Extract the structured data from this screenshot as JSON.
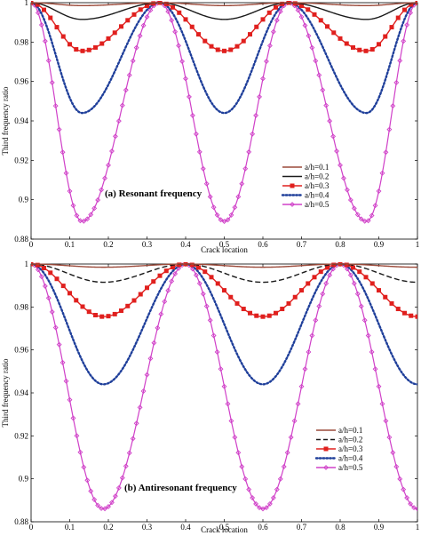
{
  "chart_data": [
    {
      "type": "line",
      "annotation": "(a) Resonant frequency",
      "xlabel": "Crack location",
      "ylabel": "Third frequency ratio",
      "xlim": [
        0,
        1
      ],
      "ylim": [
        0.88,
        1.0
      ],
      "xticks": [
        0,
        0.1,
        0.2,
        0.3,
        0.4,
        0.5,
        0.6,
        0.7,
        0.8,
        0.9,
        1
      ],
      "xtick_labels": [
        "0",
        "0.1",
        "0.2",
        "0.3",
        "0.4",
        "0.5",
        "0.6",
        "0.7",
        "0.8",
        "0.9",
        "1"
      ],
      "yticks": [
        0.88,
        0.9,
        0.92,
        0.94,
        0.96,
        0.98,
        1.0
      ],
      "ytick_labels": [
        "0.88",
        "0.9",
        "0.92",
        "0.94",
        "0.96",
        "0.98",
        "1"
      ],
      "legend_position": "lower-right",
      "curve_model": {
        "peaks_at": [
          0,
          0.333,
          0.667,
          1.0
        ],
        "minima_at": [
          0.132,
          0.5,
          0.868
        ],
        "shape": "sin^2"
      },
      "series": [
        {
          "name": "a/h=0.1",
          "color": "#9c4a3a",
          "style": "solid",
          "min": 0.9985
        },
        {
          "name": "a/h=0.2",
          "color": "#1a1a1a",
          "style": "solid",
          "min": 0.9915
        },
        {
          "name": "a/h=0.3",
          "color": "#e0201e",
          "style": "solid-square",
          "min": 0.9755
        },
        {
          "name": "a/h=0.4",
          "color": "#1f3f9a",
          "style": "dotted",
          "min": 0.944
        },
        {
          "name": "a/h=0.5",
          "color": "#d040c8",
          "style": "solid-diamond",
          "min": 0.889
        }
      ]
    },
    {
      "type": "line",
      "annotation": "(b) Antiresonant frequency",
      "xlabel": "Crack location",
      "ylabel": "Third frequency ratio",
      "xlim": [
        0,
        1
      ],
      "ylim": [
        0.88,
        1.0
      ],
      "xticks": [
        0,
        0.1,
        0.2,
        0.3,
        0.4,
        0.5,
        0.6,
        0.7,
        0.8,
        0.9,
        1
      ],
      "xtick_labels": [
        "0",
        "0.1",
        "0.2",
        "0.3",
        "0.4",
        "0.5",
        "0.6",
        "0.7",
        "0.8",
        "0.9",
        "1"
      ],
      "yticks": [
        0.88,
        0.9,
        0.92,
        0.94,
        0.96,
        0.98,
        1.0
      ],
      "ytick_labels": [
        "0.88",
        "0.9",
        "0.92",
        "0.94",
        "0.96",
        "0.98",
        "1"
      ],
      "legend_position": "lower-right",
      "curve_model": {
        "peaks_at": [
          0,
          0.4,
          0.8
        ],
        "minima_at": [
          0.187,
          0.6,
          1.0
        ],
        "shape": "sin^2"
      },
      "series": [
        {
          "name": "a/h=0.1",
          "color": "#9c4a3a",
          "style": "solid",
          "min": 0.9985
        },
        {
          "name": "a/h=0.2",
          "color": "#1a1a1a",
          "style": "dashed",
          "min": 0.9915
        },
        {
          "name": "a/h=0.3",
          "color": "#e0201e",
          "style": "solid-square",
          "min": 0.9755
        },
        {
          "name": "a/h=0.4",
          "color": "#1f3f9a",
          "style": "dotted",
          "min": 0.944
        },
        {
          "name": "a/h=0.5",
          "color": "#d040c8",
          "style": "solid-diamond",
          "min": 0.886
        }
      ]
    }
  ]
}
